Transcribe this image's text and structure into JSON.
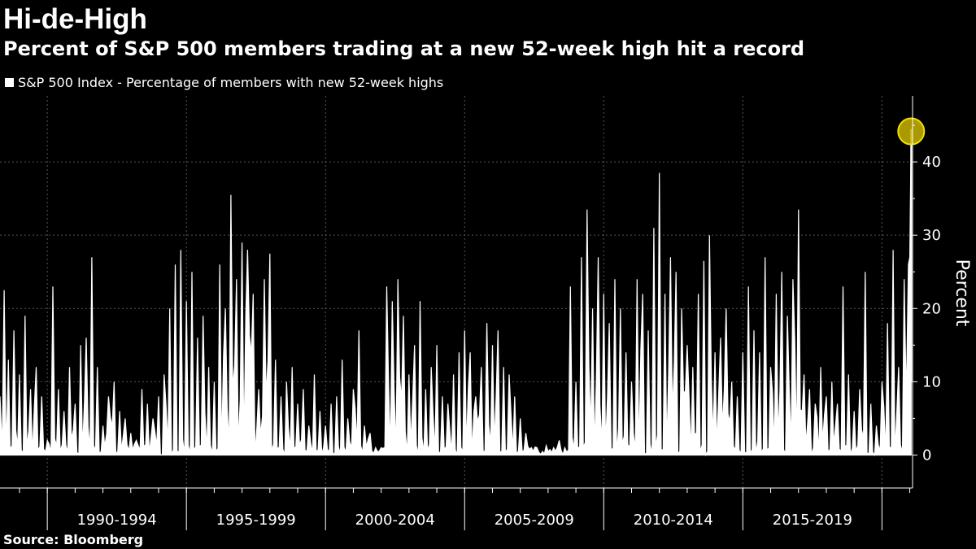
{
  "title": "Hi-de-High",
  "subtitle": "Percent of S&P 500 members trading at a new 52-week high hit a record",
  "source": "Source: Bloomberg",
  "colors": {
    "background": "#000000",
    "series": "#ffffff",
    "highlight": "#c8b400",
    "highlight_stroke": "#f0e000",
    "grid": "#555555"
  },
  "chart_data": {
    "type": "area",
    "title": "Hi-de-High",
    "subtitle": "Percent of S&P 500 members trading at a new 52-week high hit a record",
    "legend": "top-left",
    "grid": true,
    "xlabel": "",
    "ylabel": "Percent",
    "ylim": [
      -4.5,
      49
    ],
    "y_axis_side": "right",
    "yticks": [
      0,
      10,
      20,
      30,
      40
    ],
    "xlim": [
      1988.3,
      2021.1
    ],
    "x_period_boundaries": [
      1990,
      1995,
      2000,
      2005,
      2010,
      2015,
      2020
    ],
    "x_category_labels": [
      "1990-1994",
      "1995-1999",
      "2000-2004",
      "2005-2009",
      "2010-2014",
      "2015-2019"
    ],
    "series": [
      {
        "name": "S&P 500 Index - Percentage of members with new 52-week highs",
        "x": [
          1988.3,
          1988.45,
          1988.6,
          1988.8,
          1989.0,
          1989.2,
          1989.4,
          1989.6,
          1989.8,
          1990.0,
          1990.2,
          1990.4,
          1990.6,
          1990.8,
          1991.0,
          1991.2,
          1991.4,
          1991.6,
          1991.8,
          1992.0,
          1992.2,
          1992.4,
          1992.6,
          1992.8,
          1993.0,
          1993.2,
          1993.4,
          1993.6,
          1993.8,
          1994.0,
          1994.2,
          1994.4,
          1994.6,
          1994.8,
          1995.0,
          1995.2,
          1995.4,
          1995.6,
          1995.8,
          1996.0,
          1996.2,
          1996.4,
          1996.6,
          1996.8,
          1997.0,
          1997.2,
          1997.4,
          1997.6,
          1997.8,
          1998.0,
          1998.2,
          1998.4,
          1998.6,
          1998.8,
          1999.0,
          1999.2,
          1999.4,
          1999.6,
          1999.8,
          2000.0,
          2000.2,
          2000.4,
          2000.6,
          2000.8,
          2001.0,
          2001.2,
          2001.4,
          2001.6,
          2001.8,
          2002.0,
          2002.2,
          2002.4,
          2002.6,
          2002.8,
          2003.0,
          2003.2,
          2003.4,
          2003.6,
          2003.8,
          2004.0,
          2004.2,
          2004.4,
          2004.6,
          2004.8,
          2005.0,
          2005.2,
          2005.4,
          2005.6,
          2005.8,
          2006.0,
          2006.2,
          2006.4,
          2006.6,
          2006.8,
          2007.0,
          2007.2,
          2007.4,
          2007.6,
          2007.8,
          2008.0,
          2008.2,
          2008.4,
          2008.6,
          2008.8,
          2009.0,
          2009.2,
          2009.4,
          2009.6,
          2009.8,
          2010.0,
          2010.2,
          2010.4,
          2010.6,
          2010.8,
          2011.0,
          2011.2,
          2011.4,
          2011.6,
          2011.8,
          2012.0,
          2012.2,
          2012.4,
          2012.6,
          2012.8,
          2013.0,
          2013.2,
          2013.4,
          2013.6,
          2013.8,
          2014.0,
          2014.2,
          2014.4,
          2014.6,
          2014.8,
          2015.0,
          2015.2,
          2015.4,
          2015.6,
          2015.8,
          2016.0,
          2016.2,
          2016.4,
          2016.6,
          2016.8,
          2017.0,
          2017.2,
          2017.4,
          2017.6,
          2017.8,
          2018.0,
          2018.2,
          2018.4,
          2018.6,
          2018.8,
          2019.0,
          2019.2,
          2019.4,
          2019.6,
          2019.8,
          2020.0,
          2020.2,
          2020.4,
          2020.6,
          2020.8,
          2020.95,
          2021.0,
          2021.05
        ],
        "values": [
          8,
          22.5,
          13,
          17,
          11,
          19,
          9,
          12,
          8,
          2,
          23,
          9,
          6,
          12,
          7,
          15,
          16,
          27,
          12,
          4,
          8,
          10,
          6,
          5,
          3,
          2,
          9,
          7,
          5,
          8,
          11,
          20,
          26,
          28,
          21,
          25,
          16,
          19,
          12,
          10,
          26,
          20,
          35.5,
          24,
          29,
          28,
          22,
          9,
          24,
          27.5,
          13,
          8,
          10,
          12,
          7,
          9,
          4,
          11,
          6,
          4,
          7,
          8,
          13,
          5,
          9,
          17,
          4,
          3,
          1,
          1,
          23,
          21,
          24,
          19,
          11,
          15,
          21,
          9,
          12,
          15,
          8,
          7,
          11,
          14,
          17,
          14,
          8,
          12,
          18,
          15,
          17,
          12,
          11,
          8,
          5,
          3,
          1,
          1,
          0.5,
          0.5,
          1,
          2,
          1,
          23,
          10,
          27,
          33.5,
          20,
          27,
          22,
          18,
          24,
          20,
          14,
          10,
          24,
          22,
          17,
          31,
          38.5,
          22,
          27,
          25,
          20,
          15,
          12,
          22,
          26.5,
          30,
          14,
          16,
          20,
          10,
          8,
          14,
          23,
          17,
          14,
          27,
          12,
          22,
          25,
          19,
          24,
          33.5,
          11,
          9,
          7,
          12,
          8,
          10,
          7,
          23,
          11,
          6,
          9,
          25,
          7,
          4,
          10,
          18,
          28,
          12,
          24,
          26,
          27,
          44.5
        ]
      }
    ],
    "highlight": {
      "x": 2021.05,
      "value": 44.5
    }
  }
}
